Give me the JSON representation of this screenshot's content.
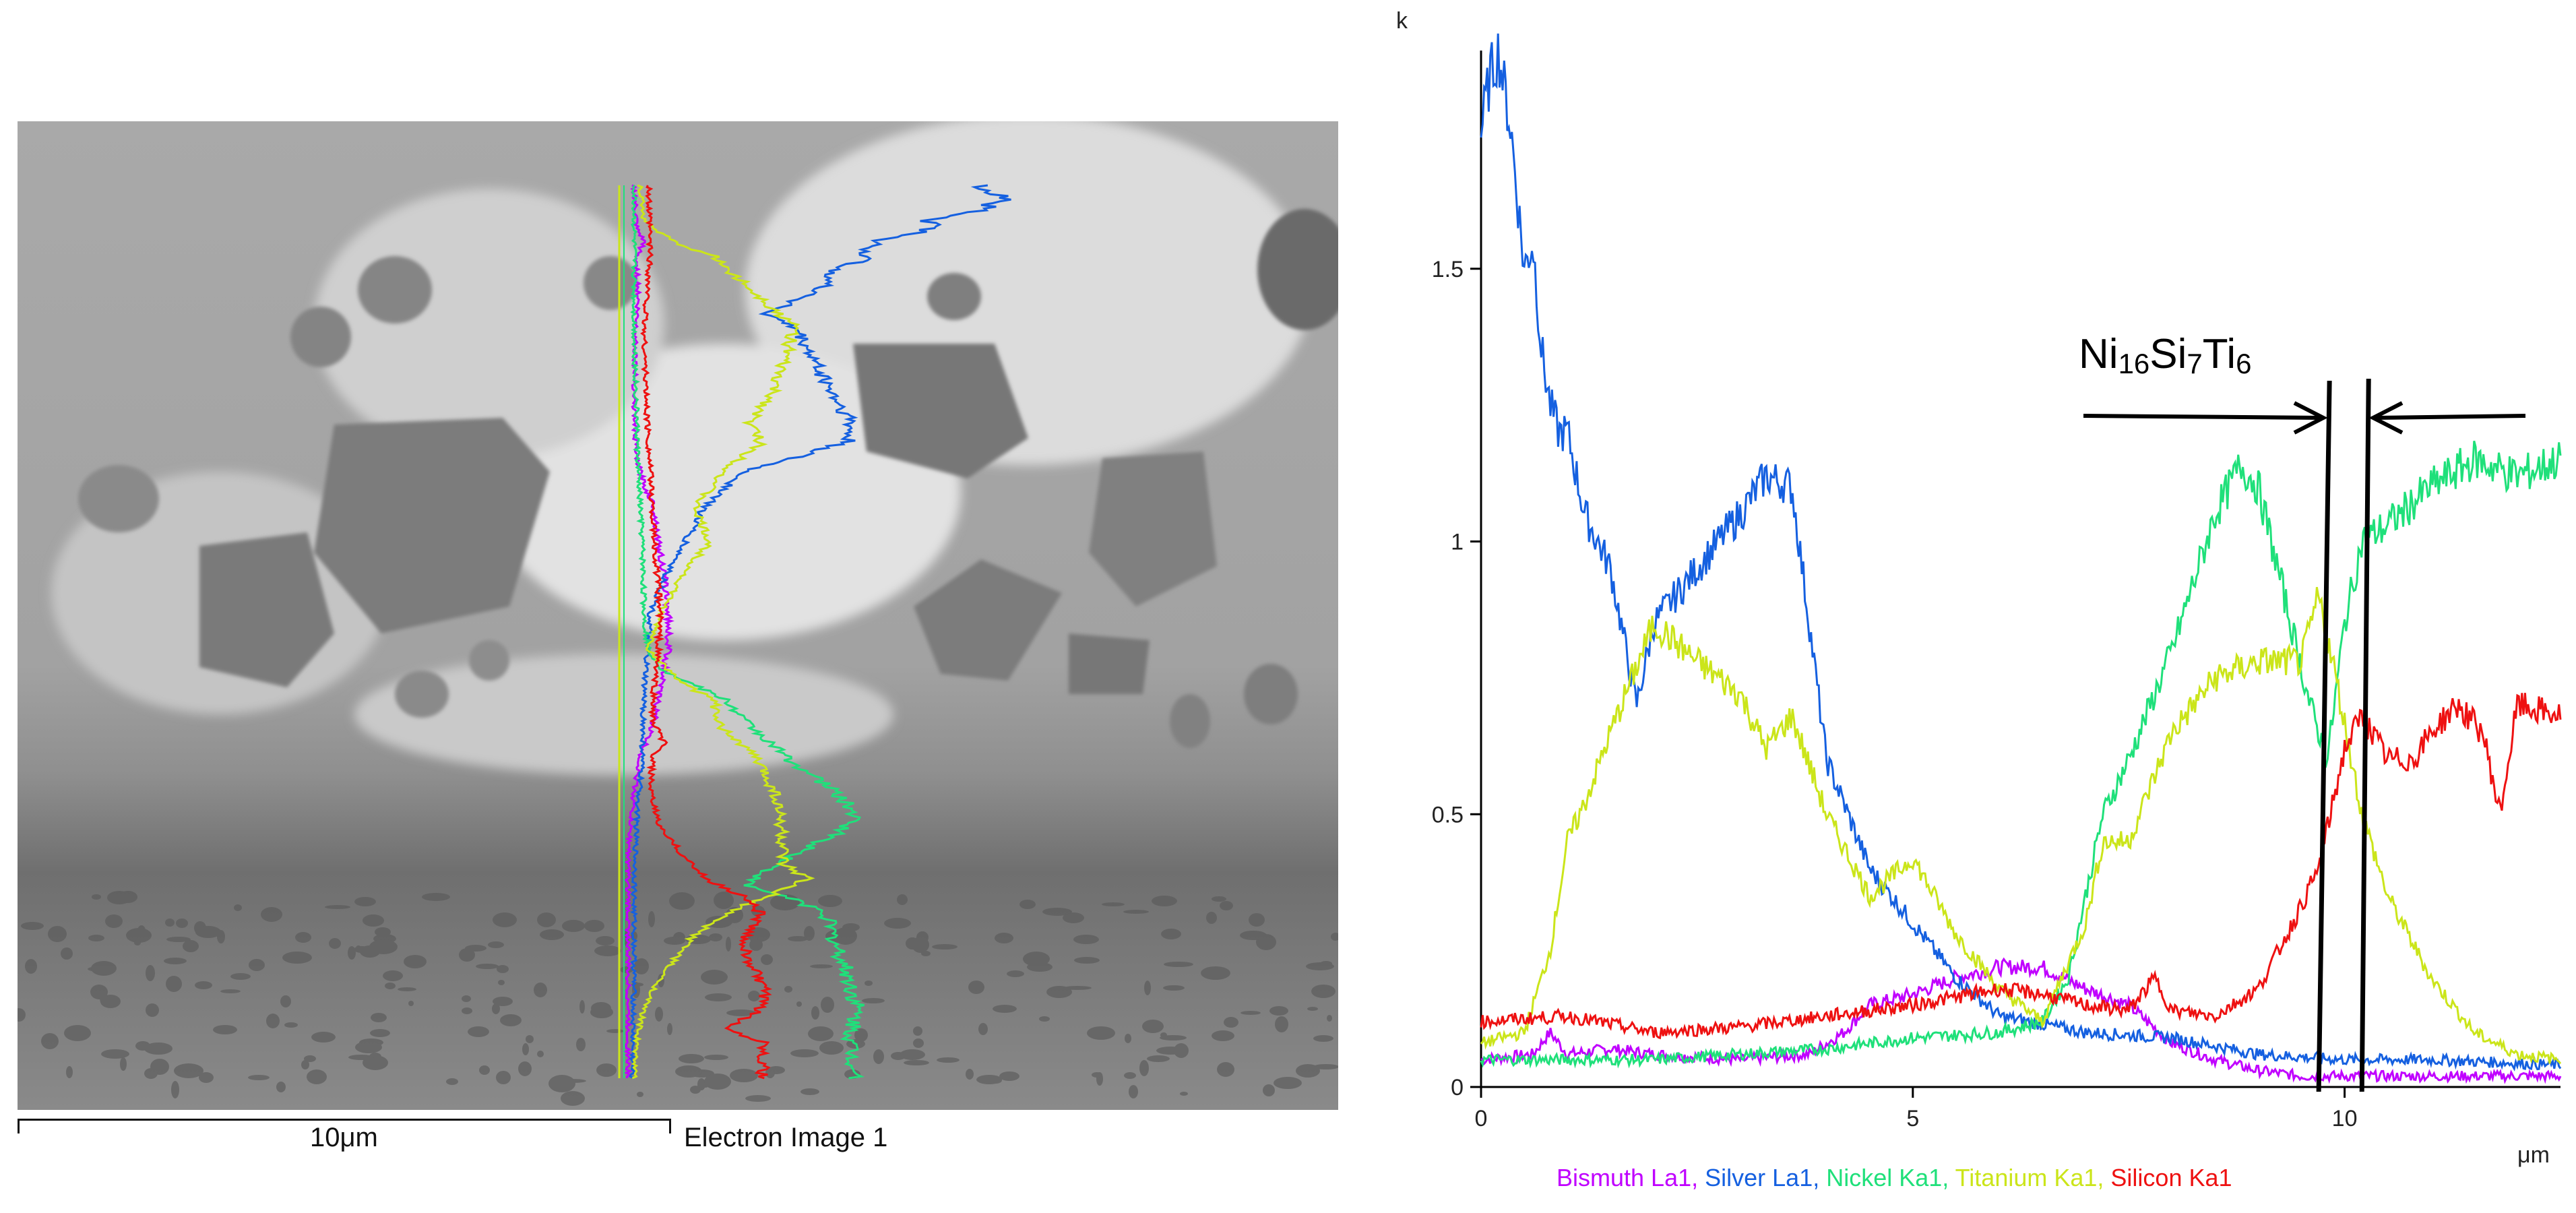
{
  "sem_image": {
    "scale_bar_label": "10μm",
    "caption": "Electron Image 1"
  },
  "annotation": {
    "phase": "Ni16Si7Ti6",
    "parts": [
      {
        "text": "Ni",
        "sub": "16"
      },
      {
        "text": "Si",
        "sub": "7"
      },
      {
        "text": "Ti",
        "sub": "6"
      }
    ],
    "boundaries_um": [
      9.7,
      10.2
    ]
  },
  "colors": {
    "Bismuth": "#c000ff",
    "Silver": "#1560e0",
    "Nickel": "#1fe07a",
    "Titanium": "#cbe51a",
    "Silicon": "#ee1111"
  },
  "chart_data": {
    "type": "line",
    "title": "",
    "xlabel": "μm",
    "ylabel": "k",
    "xlim": [
      0,
      12.5
    ],
    "ylim": [
      0,
      1.9
    ],
    "xticks": [
      0,
      5,
      10
    ],
    "xtick_labels": [
      "0",
      "5",
      "10"
    ],
    "yticks": [
      0,
      0.5,
      1,
      1.5
    ],
    "ytick_labels": [
      "0",
      "0.5",
      "1",
      "1.5"
    ],
    "legend_position": "bottom",
    "grid": false,
    "series": [
      {
        "name": "Bismuth La1",
        "x": [
          0,
          0.6,
          0.8,
          1.0,
          1.5,
          2.0,
          3.0,
          3.8,
          4.2,
          4.5,
          5.0,
          5.5,
          6.0,
          6.5,
          7.0,
          7.5,
          8.0,
          8.5,
          9.0,
          9.5,
          10.0,
          11.0,
          12.5
        ],
        "values": [
          0.05,
          0.06,
          0.1,
          0.06,
          0.07,
          0.06,
          0.05,
          0.06,
          0.1,
          0.15,
          0.17,
          0.2,
          0.22,
          0.22,
          0.18,
          0.15,
          0.08,
          0.05,
          0.03,
          0.02,
          0.02,
          0.02,
          0.02
        ]
      },
      {
        "name": "Silver La1",
        "x": [
          0,
          0.1,
          0.2,
          0.35,
          0.5,
          0.6,
          0.7,
          0.8,
          0.9,
          1.0,
          1.2,
          1.5,
          1.8,
          2.0,
          2.5,
          3.0,
          3.3,
          3.6,
          3.8,
          4.0,
          4.5,
          5.0,
          5.5,
          6.0,
          7.0,
          8.0,
          9.0,
          10.0,
          11.0,
          12.5
        ],
        "values": [
          1.75,
          1.85,
          1.9,
          1.75,
          1.5,
          1.55,
          1.35,
          1.25,
          1.2,
          1.2,
          1.05,
          0.95,
          0.7,
          0.85,
          0.95,
          1.05,
          1.12,
          1.1,
          0.85,
          0.6,
          0.4,
          0.3,
          0.2,
          0.13,
          0.1,
          0.09,
          0.06,
          0.05,
          0.05,
          0.04
        ]
      },
      {
        "name": "Nickel Ka1",
        "x": [
          0,
          1,
          2,
          3,
          4,
          5,
          6,
          6.5,
          6.8,
          7.0,
          7.2,
          7.5,
          8.0,
          8.5,
          8.8,
          9.0,
          9.3,
          9.6,
          9.8,
          10.0,
          10.2,
          10.5,
          11.0,
          11.5,
          12.0,
          12.5
        ],
        "values": [
          0.05,
          0.05,
          0.05,
          0.06,
          0.07,
          0.09,
          0.1,
          0.12,
          0.2,
          0.35,
          0.5,
          0.6,
          0.8,
          1.05,
          1.14,
          1.1,
          0.9,
          0.7,
          0.6,
          0.85,
          1.0,
          1.03,
          1.1,
          1.15,
          1.12,
          1.15
        ]
      },
      {
        "name": "Titanium Ka1",
        "x": [
          0,
          0.5,
          0.8,
          1.0,
          1.2,
          1.5,
          2.0,
          2.5,
          3.0,
          3.3,
          3.6,
          4.0,
          4.5,
          5.0,
          5.5,
          6.0,
          6.5,
          7.0,
          7.2,
          7.5,
          8.0,
          8.5,
          9.0,
          9.5,
          9.7,
          9.9,
          10.2,
          10.5,
          11.0,
          11.5,
          12.0,
          12.5
        ],
        "values": [
          0.08,
          0.1,
          0.25,
          0.45,
          0.52,
          0.65,
          0.85,
          0.78,
          0.72,
          0.62,
          0.68,
          0.5,
          0.35,
          0.42,
          0.28,
          0.18,
          0.12,
          0.3,
          0.45,
          0.45,
          0.65,
          0.75,
          0.78,
          0.78,
          0.9,
          0.75,
          0.5,
          0.35,
          0.2,
          0.1,
          0.06,
          0.05
        ]
      },
      {
        "name": "Silicon Ka1",
        "x": [
          0,
          1,
          2,
          3,
          4,
          5,
          6,
          6.5,
          7.0,
          7.5,
          7.8,
          8.0,
          8.5,
          9.0,
          9.4,
          9.7,
          10.0,
          10.2,
          10.5,
          10.8,
          11.0,
          11.3,
          11.6,
          11.8,
          12.0,
          12.5
        ],
        "values": [
          0.12,
          0.13,
          0.1,
          0.11,
          0.13,
          0.15,
          0.18,
          0.17,
          0.15,
          0.14,
          0.2,
          0.14,
          0.13,
          0.18,
          0.3,
          0.4,
          0.62,
          0.68,
          0.6,
          0.6,
          0.65,
          0.7,
          0.65,
          0.5,
          0.7,
          0.68
        ]
      }
    ]
  }
}
